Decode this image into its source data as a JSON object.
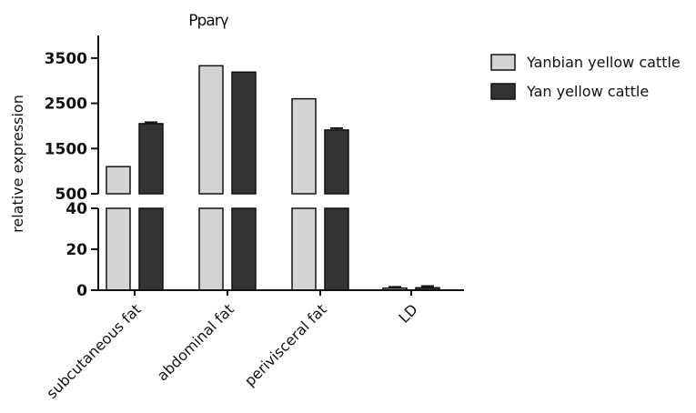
{
  "chart_data": {
    "type": "bar",
    "title": "Pparγ",
    "ylabel": "relative expression",
    "xlabel": "",
    "categories": [
      "subcutaneous fat",
      "abdominal fat",
      "perivisceral fat",
      "LD"
    ],
    "series": [
      {
        "name": "Yanbian yellow cattle",
        "color": "#d3d3d3",
        "values": [
          1100,
          3330,
          2600,
          1.0
        ],
        "errors": [
          0,
          0,
          0,
          0.6
        ]
      },
      {
        "name": "Yan yellow cattle",
        "color": "#333333",
        "values": [
          2050,
          3190,
          1910,
          1.2
        ],
        "errors": [
          30,
          0,
          40,
          0.8
        ]
      }
    ],
    "axis_break": {
      "lower_range": [
        0,
        40
      ],
      "lower_ticks": [
        0,
        20,
        40
      ],
      "upper_range": [
        500,
        4000
      ],
      "upper_ticks": [
        500,
        1500,
        2500,
        3500
      ]
    },
    "legend_position": "top-right",
    "grid": false
  }
}
